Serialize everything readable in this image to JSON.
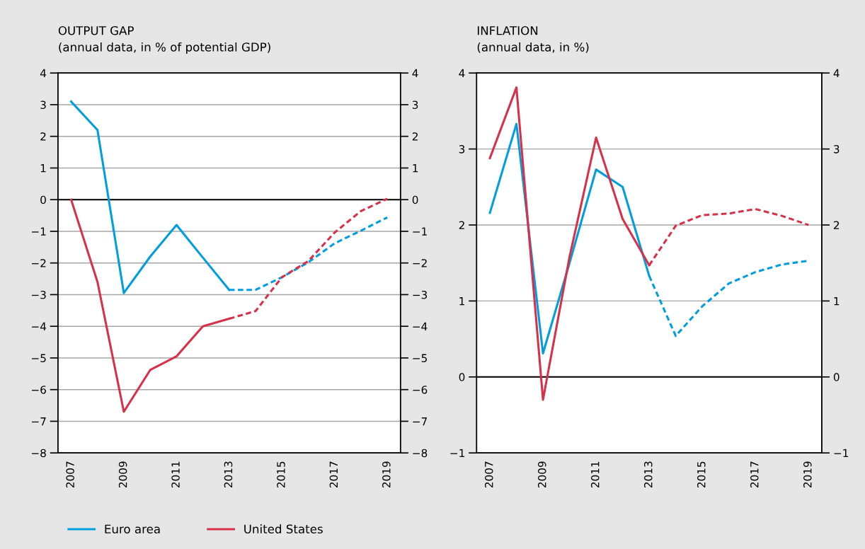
{
  "chart_data": [
    {
      "type": "line",
      "title": "OUTPUT GAP",
      "subtitle": "(annual data, in % of potential GDP)",
      "categories": [
        "2007",
        null,
        "2009",
        null,
        "2011",
        null,
        "2013",
        null,
        "2015",
        null,
        "2017",
        null,
        "2019"
      ],
      "series": [
        {
          "name": "Euro area",
          "color": "#009ee0",
          "line_style": "solid",
          "values": [
            3.1,
            2.2,
            -2.95,
            -1.8,
            -0.8,
            -1.83,
            -2.85,
            null,
            null,
            null,
            null,
            null,
            null
          ]
        },
        {
          "name": "United States",
          "color": "#d9304a",
          "line_style": "solid",
          "values": [
            0,
            -2.6,
            -6.7,
            -5.38,
            -4.95,
            -4.0,
            -3.76,
            null,
            null,
            null,
            null,
            null,
            null
          ]
        },
        {
          "color": "#009ee0",
          "line_style": "dotted",
          "values": [
            null,
            null,
            null,
            null,
            null,
            null,
            -2.85,
            -2.85,
            -2.45,
            -1.98,
            -1.38,
            -0.98,
            -0.56
          ]
        },
        {
          "color": "#d9304a",
          "line_style": "dotted",
          "values": [
            null,
            null,
            null,
            null,
            null,
            null,
            -3.76,
            -3.52,
            -2.45,
            -1.94,
            -1.04,
            -0.36,
            0.03
          ]
        }
      ],
      "ylim": [
        -8,
        4
      ],
      "yticks": [
        {
          "value": -8,
          "label": "−8"
        },
        {
          "value": -7,
          "label": "−7"
        },
        {
          "value": -6,
          "label": "−6"
        },
        {
          "value": -5,
          "label": "−5"
        },
        {
          "value": -4,
          "label": "−4"
        },
        {
          "value": -3,
          "label": "−3"
        },
        {
          "value": -2,
          "label": "−2"
        },
        {
          "value": -1,
          "label": "−1"
        },
        0,
        1,
        2,
        3,
        4
      ],
      "y2lim": [
        -8,
        4
      ],
      "y2ticks": [
        {
          "value": -8,
          "label": "−8"
        },
        {
          "value": -7,
          "label": "−7"
        },
        {
          "value": -6,
          "label": "−6"
        },
        {
          "value": -5,
          "label": "−5"
        },
        {
          "value": -4,
          "label": "−4"
        },
        {
          "value": -3,
          "label": "−3"
        },
        {
          "value": -2,
          "label": "−2"
        },
        {
          "value": -1,
          "label": "−1"
        },
        0,
        1,
        2,
        3,
        4
      ],
      "ref_lines": [
        {
          "axis": "y",
          "value": 0,
          "color": "#000000"
        }
      ],
      "grid": "y",
      "legend": "bottom"
    },
    {
      "type": "line",
      "title": "INFLATION",
      "subtitle": "(annual data, in %)",
      "categories": [
        "2007",
        null,
        "2009",
        null,
        "2011",
        null,
        "2013",
        null,
        "2015",
        null,
        "2017",
        null,
        "2019"
      ],
      "series": [
        {
          "color": "#009ee0",
          "line_style": "solid",
          "values": [
            2.16,
            3.33,
            0.31,
            1.5,
            2.73,
            2.5,
            1.33,
            null,
            null,
            null,
            null,
            null,
            null
          ]
        },
        {
          "color": "#d9304a",
          "line_style": "solid",
          "values": [
            2.88,
            3.81,
            -0.3,
            1.58,
            3.15,
            2.08,
            1.47,
            null,
            null,
            null,
            null,
            null,
            null
          ]
        },
        {
          "color": "#009ee0",
          "line_style": "dotted",
          "values": [
            null,
            null,
            null,
            null,
            null,
            null,
            1.33,
            0.54,
            0.93,
            1.23,
            1.38,
            1.48,
            1.53
          ]
        },
        {
          "color": "#d9304a",
          "line_style": "dotted",
          "values": [
            null,
            null,
            null,
            null,
            null,
            null,
            1.47,
            1.99,
            2.13,
            2.15,
            2.21,
            2.12,
            2.0
          ]
        }
      ],
      "ylim": [
        -1,
        4
      ],
      "yticks": [
        {
          "value": -1,
          "label": "−1"
        },
        0,
        1,
        2,
        3,
        4
      ],
      "y2lim": [
        -1,
        4
      ],
      "y2ticks": [
        {
          "value": -1,
          "label": "−1"
        },
        0,
        1,
        2,
        3,
        4
      ],
      "ref_lines": [
        {
          "axis": "y",
          "value": 0,
          "color": "#000000"
        }
      ],
      "grid": "y"
    }
  ]
}
